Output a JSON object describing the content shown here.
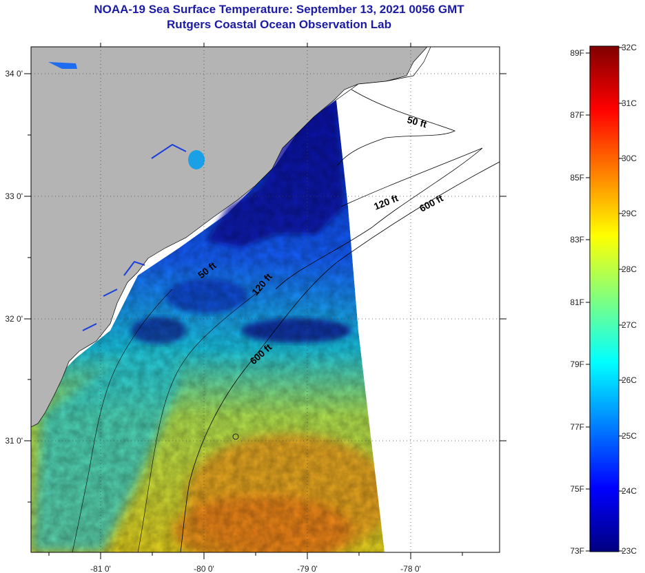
{
  "header": {
    "title": "NOAA-19 Sea Surface Temperature:  September 13, 2021 0056 GMT",
    "subtitle": "Rutgers Coastal Ocean Observation Lab"
  },
  "map": {
    "lon_ticks": [
      "-81 0'",
      "-80 0'",
      "-79 0'",
      "-78 0'"
    ],
    "lat_ticks": [
      "34 0'",
      "33 0'",
      "32 0'",
      "31 0'"
    ],
    "contours": [
      {
        "label": "50 ft"
      },
      {
        "label": "120 ft"
      },
      {
        "label": "600 ft"
      },
      {
        "label": "50 ft"
      },
      {
        "label": "120 ft"
      },
      {
        "label": "600 ft"
      }
    ],
    "colors": {
      "land": "#b4b4b4",
      "no_data": "#ffffff"
    }
  },
  "colorbar": {
    "fahrenheit": [
      "89F",
      "87F",
      "85F",
      "83F",
      "81F",
      "79F",
      "77F",
      "75F",
      "73F"
    ],
    "celsius": [
      "32C",
      "31C",
      "30C",
      "29C",
      "28C",
      "27C",
      "26C",
      "25C",
      "24C",
      "23C"
    ],
    "stops": [
      "#000080",
      "#0000ff",
      "#0080ff",
      "#00ffff",
      "#80ff80",
      "#ffff00",
      "#ff8000",
      "#ff0000",
      "#800000"
    ]
  }
}
